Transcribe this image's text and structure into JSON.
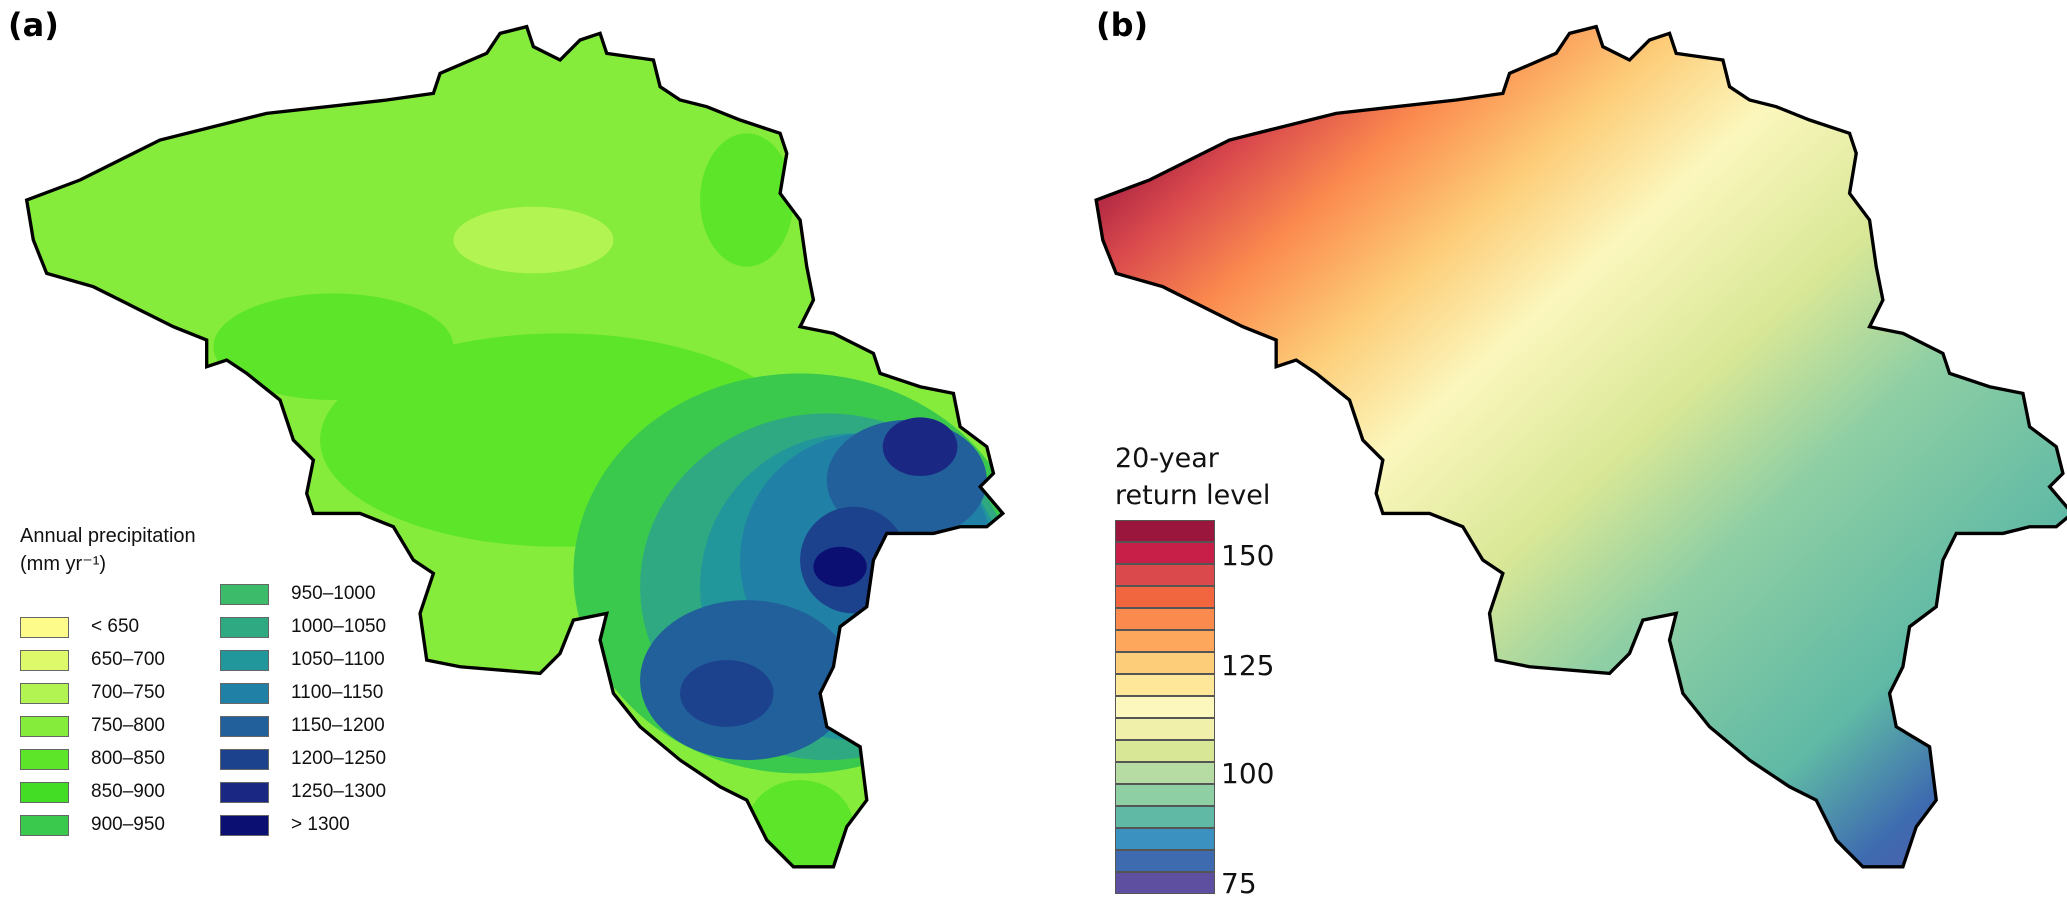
{
  "panels": {
    "a": {
      "label": "(a)",
      "legend_title": "Annual precipitation",
      "legend_unit": "(mm yr⁻¹)",
      "items": [
        {
          "label": "< 650",
          "color": "#fdfc8a"
        },
        {
          "label": "650–700",
          "color": "#def96a"
        },
        {
          "label": "700–750",
          "color": "#b2f451"
        },
        {
          "label": "750–800",
          "color": "#86ec3c"
        },
        {
          "label": "800–850",
          "color": "#5de52a"
        },
        {
          "label": "850–900",
          "color": "#42dd24"
        },
        {
          "label": "900–950",
          "color": "#3ac94c"
        },
        {
          "label": "950–1000",
          "color": "#3cbb6a"
        },
        {
          "label": "1000–1050",
          "color": "#2fa981"
        },
        {
          "label": "1050–1100",
          "color": "#22979b"
        },
        {
          "label": "1100–1150",
          "color": "#2080a5"
        },
        {
          "label": "1150–1200",
          "color": "#22609c"
        },
        {
          "label": "1200–1250",
          "color": "#1c418d"
        },
        {
          "label": "1250–1300",
          "color": "#1a2883"
        },
        {
          "label": "> 1300",
          "color": "#0b0f72"
        }
      ]
    },
    "b": {
      "label": "(b)",
      "legend_title_1": "20-year",
      "legend_title_2": "return level",
      "ticks": [
        "150",
        "125",
        "100",
        "75"
      ],
      "colors": [
        "#9b163d",
        "#c71f48",
        "#da4a4d",
        "#f1653f",
        "#fb8a4e",
        "#fca75b",
        "#fdcd79",
        "#fee798",
        "#fbf7bd",
        "#f0f0aa",
        "#d8e796",
        "#b7dca3",
        "#8fcfa4",
        "#5fb9a5",
        "#3b92c0",
        "#3e6bb0",
        "#5e4fa1"
      ]
    }
  }
}
